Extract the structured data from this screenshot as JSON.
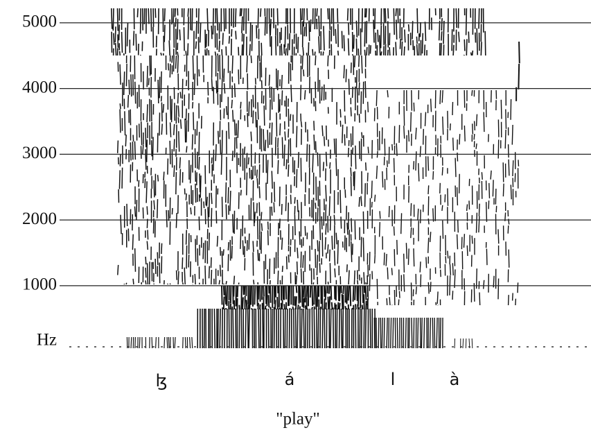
{
  "chart_data": {
    "type": "spectrogram",
    "y_label": "Hz",
    "ylim": [
      70,
      5220
    ],
    "yticks": [
      1000,
      2000,
      3000,
      4000,
      5000
    ],
    "grid": true,
    "segments": [
      "ɮ",
      "á",
      "l",
      "à"
    ],
    "caption": "\"play\""
  }
}
